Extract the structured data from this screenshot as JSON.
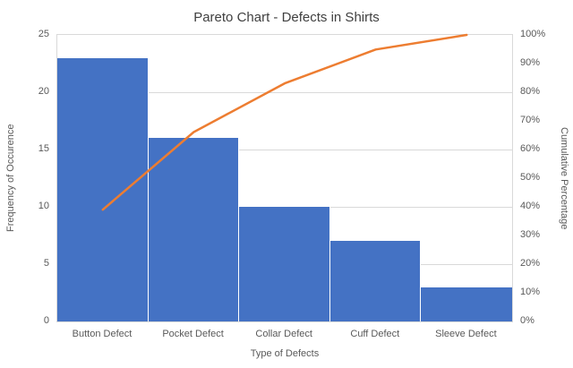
{
  "title": "Pareto Chart - Defects in Shirts",
  "chart_data": {
    "type": "pareto (bar + line combo)",
    "title": "Pareto Chart - Defects in Shirts",
    "categories": [
      "Button Defect",
      "Pocket Defect",
      "Collar Defect",
      "Cuff Defect",
      "Sleeve Defect"
    ],
    "series": [
      {
        "name": "Frequency of Occurence",
        "kind": "bar",
        "axis": "left",
        "values": [
          23,
          16,
          10,
          7,
          3
        ]
      },
      {
        "name": "Cumulative Percentage",
        "kind": "line",
        "axis": "right",
        "values_pct": [
          39.0,
          66.1,
          83.1,
          94.9,
          100.0
        ]
      }
    ],
    "xlabel": "Type of Defects",
    "ylabel_left": "Frequency of Occurence",
    "ylabel_right": "Cumulative Percentage",
    "axis_left": {
      "min": 0,
      "max": 25,
      "ticks": [
        0,
        5,
        10,
        15,
        20,
        25
      ]
    },
    "axis_right": {
      "min_pct": 0,
      "max_pct": 100,
      "ticks": [
        "0%",
        "10%",
        "20%",
        "30%",
        "40%",
        "50%",
        "60%",
        "70%",
        "80%",
        "90%",
        "100%"
      ]
    },
    "grid": {
      "horizontal": true,
      "at_left_values": [
        5,
        10,
        15,
        20
      ]
    },
    "legend": "none"
  },
  "colors": {
    "bar": "#4472C4",
    "line": "#ED7D31",
    "grid": "#D9D9D9",
    "axis_text": "#595959",
    "title_text": "#404040",
    "background": "#FFFFFF"
  }
}
